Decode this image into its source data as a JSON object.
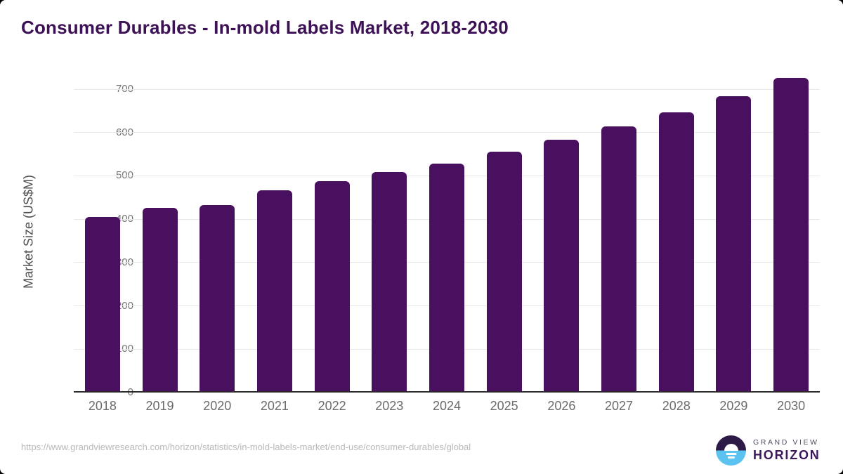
{
  "title": "Consumer Durables - In-mold Labels Market, 2018-2030",
  "source_url": "https://www.grandviewresearch.com/horizon/statistics/in-mold-labels-market/end-use/consumer-durables/global",
  "logo": {
    "top_text": "GRAND VIEW",
    "bottom_text": "HORIZON"
  },
  "chart_data": {
    "type": "bar",
    "title": "Consumer Durables - In-mold Labels Market, 2018-2030",
    "categories": [
      "2018",
      "2019",
      "2020",
      "2021",
      "2022",
      "2023",
      "2024",
      "2025",
      "2026",
      "2027",
      "2028",
      "2029",
      "2030"
    ],
    "values": [
      405,
      426,
      433,
      467,
      488,
      509,
      529,
      556,
      583,
      614,
      647,
      683,
      726
    ],
    "xlabel": "",
    "ylabel": "Market Size (US$M)",
    "ylim": [
      0,
      700
    ],
    "yticks": [
      0,
      100,
      200,
      300,
      400,
      500,
      600,
      700
    ],
    "grid": true,
    "legend_position": "none",
    "bar_color": "#4a1060"
  },
  "colors": {
    "bar": "#4a1060",
    "title": "#3d1155",
    "axis_line": "#2b2b2b",
    "gridline": "#e8e8e8",
    "tick_label": "#757575",
    "x_label": "#6b6b6b",
    "y_axis_title": "#4f4f4f",
    "url": "#b9b9b9",
    "logo_dark": "#2e1a47",
    "logo_blue": "#5cc3f0",
    "logo_grandview_text": "#524a60",
    "logo_horizon_text": "#3c175c"
  }
}
